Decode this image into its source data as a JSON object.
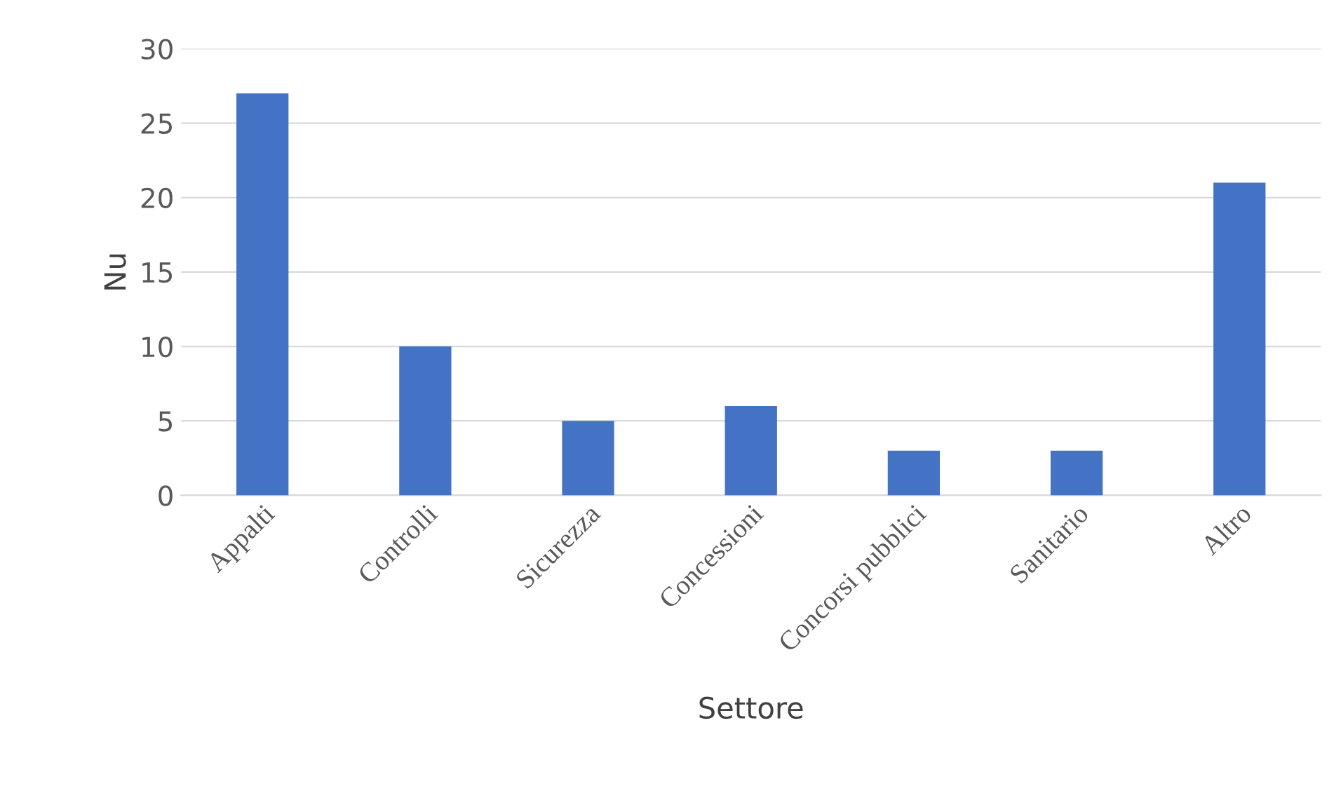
{
  "chart_data": {
    "type": "bar",
    "xlabel": "Settore",
    "ylabel": "Nu",
    "categories": [
      "Appalti",
      "Controlli",
      "Sicurezza",
      "Concessioni",
      "Concorsi pubblici",
      "Sanitario",
      "Altro"
    ],
    "values": [
      27,
      10,
      5,
      6,
      3,
      3,
      21
    ],
    "color": "#4472c4",
    "ylim": [
      0,
      30
    ],
    "yticks": [
      0,
      5,
      10,
      15,
      20,
      25,
      30
    ],
    "grid": "y",
    "legend": false
  }
}
